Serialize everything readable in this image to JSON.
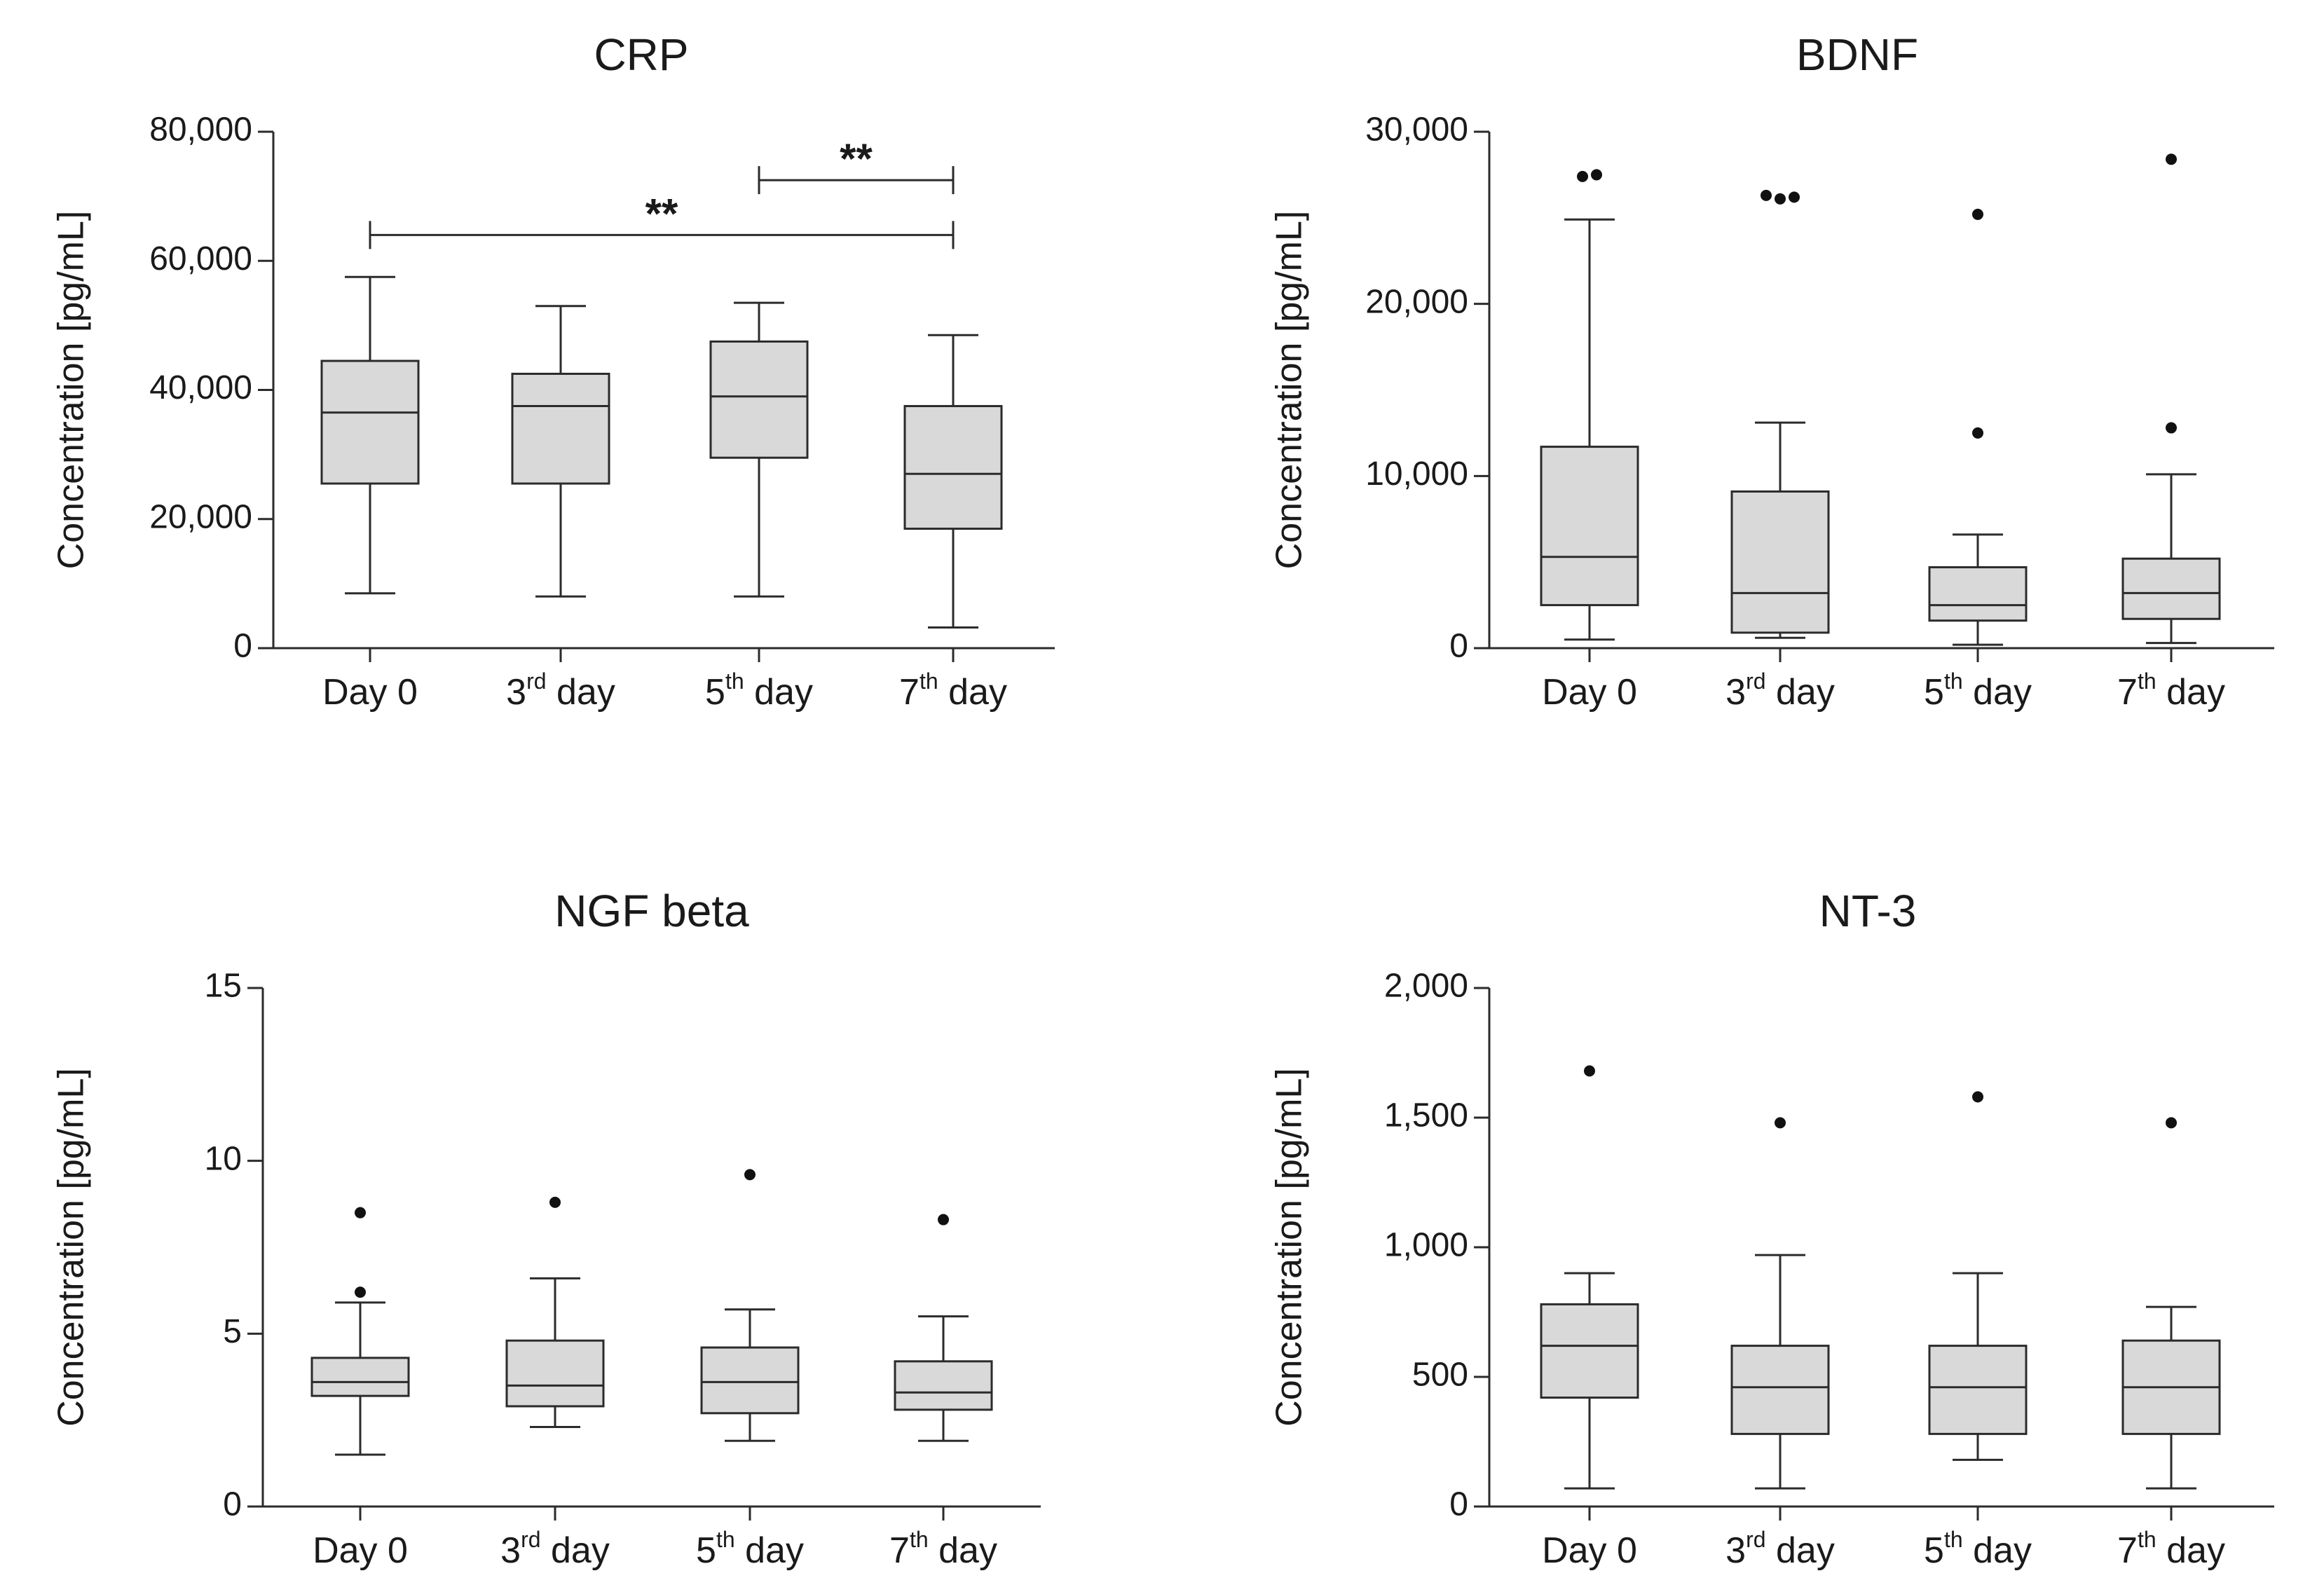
{
  "figure": {
    "colors": {
      "axis": "#2b2b2b",
      "box_fill": "#d9d9d9",
      "box_stroke": "#2b2b2b",
      "outlier": "#111111"
    }
  },
  "chart_data": [
    {
      "type": "box",
      "title": "CRP",
      "ylabel": "Concentration [pg/mL]",
      "ylim": [
        0,
        80000
      ],
      "yticks": [
        0,
        20000,
        40000,
        60000,
        80000
      ],
      "ytick_labels": [
        "0",
        "20,000",
        "40,000",
        "60,000",
        "80,000"
      ],
      "categories": [
        {
          "base": "Day 0",
          "sup": "",
          "suffix": ""
        },
        {
          "base": "3",
          "sup": "rd",
          "suffix": " day"
        },
        {
          "base": "5",
          "sup": "th",
          "suffix": " day"
        },
        {
          "base": "7",
          "sup": "th",
          "suffix": " day"
        }
      ],
      "boxes": [
        {
          "min": 8500,
          "q1": 25500,
          "median": 36500,
          "q3": 44500,
          "max": 57500,
          "outliers": []
        },
        {
          "min": 8000,
          "q1": 25500,
          "median": 37500,
          "q3": 42500,
          "max": 53000,
          "outliers": []
        },
        {
          "min": 8000,
          "q1": 29500,
          "median": 39000,
          "q3": 47500,
          "max": 53500,
          "outliers": []
        },
        {
          "min": 3200,
          "q1": 18500,
          "median": 27000,
          "q3": 37500,
          "max": 48500,
          "outliers": []
        }
      ],
      "significance": [
        {
          "from": 2,
          "to": 3,
          "y": 72500,
          "label": "**"
        },
        {
          "from": 0,
          "to": 3,
          "y": 64000,
          "label": "**"
        }
      ]
    },
    {
      "type": "box",
      "title": "BDNF",
      "ylabel": "Concentration [pg/mL]",
      "ylim": [
        0,
        30000
      ],
      "yticks": [
        0,
        10000,
        20000,
        30000
      ],
      "ytick_labels": [
        "0",
        "10,000",
        "20,000",
        "30,000"
      ],
      "categories": [
        {
          "base": "Day 0",
          "sup": "",
          "suffix": ""
        },
        {
          "base": "3",
          "sup": "rd",
          "suffix": " day"
        },
        {
          "base": "5",
          "sup": "th",
          "suffix": " day"
        },
        {
          "base": "7",
          "sup": "th",
          "suffix": " day"
        }
      ],
      "boxes": [
        {
          "min": 500,
          "q1": 2500,
          "median": 5300,
          "q3": 11700,
          "max": 24900,
          "outliers": [
            27400,
            27500
          ]
        },
        {
          "min": 600,
          "q1": 900,
          "median": 3200,
          "q3": 9100,
          "max": 13100,
          "outliers": [
            26300,
            26100,
            26200
          ]
        },
        {
          "min": 200,
          "q1": 1600,
          "median": 2500,
          "q3": 4700,
          "max": 6600,
          "outliers": [
            12500,
            25200
          ]
        },
        {
          "min": 300,
          "q1": 1700,
          "median": 3200,
          "q3": 5200,
          "max": 10100,
          "outliers": [
            12800,
            28400
          ]
        }
      ],
      "significance": []
    },
    {
      "type": "box",
      "title": "NGF beta",
      "ylabel": "Concentration [pg/mL]",
      "ylim": [
        0,
        15
      ],
      "yticks": [
        0,
        5,
        10,
        15
      ],
      "ytick_labels": [
        "0",
        "5",
        "10",
        "15"
      ],
      "categories": [
        {
          "base": "Day 0",
          "sup": "",
          "suffix": ""
        },
        {
          "base": "3",
          "sup": "rd",
          "suffix": " day"
        },
        {
          "base": "5",
          "sup": "th",
          "suffix": " day"
        },
        {
          "base": "7",
          "sup": "th",
          "suffix": " day"
        }
      ],
      "boxes": [
        {
          "min": 1.5,
          "q1": 3.2,
          "median": 3.6,
          "q3": 4.3,
          "max": 5.9,
          "outliers": [
            6.2,
            8.5
          ]
        },
        {
          "min": 2.3,
          "q1": 2.9,
          "median": 3.5,
          "q3": 4.8,
          "max": 6.6,
          "outliers": [
            8.8
          ]
        },
        {
          "min": 1.9,
          "q1": 2.7,
          "median": 3.6,
          "q3": 4.6,
          "max": 5.7,
          "outliers": [
            9.6
          ]
        },
        {
          "min": 1.9,
          "q1": 2.8,
          "median": 3.3,
          "q3": 4.2,
          "max": 5.5,
          "outliers": [
            8.3
          ]
        }
      ],
      "significance": []
    },
    {
      "type": "box",
      "title": "NT-3",
      "ylabel": "Concentration [pg/mL]",
      "ylim": [
        0,
        2000
      ],
      "yticks": [
        0,
        500,
        1000,
        1500,
        2000
      ],
      "ytick_labels": [
        "0",
        "500",
        "1,000",
        "1,500",
        "2,000"
      ],
      "categories": [
        {
          "base": "Day 0",
          "sup": "",
          "suffix": ""
        },
        {
          "base": "3",
          "sup": "rd",
          "suffix": " day"
        },
        {
          "base": "5",
          "sup": "th",
          "suffix": " day"
        },
        {
          "base": "7",
          "sup": "th",
          "suffix": " day"
        }
      ],
      "boxes": [
        {
          "min": 70,
          "q1": 420,
          "median": 620,
          "q3": 780,
          "max": 900,
          "outliers": [
            1680
          ]
        },
        {
          "min": 70,
          "q1": 280,
          "median": 460,
          "q3": 620,
          "max": 970,
          "outliers": [
            1480
          ]
        },
        {
          "min": 180,
          "q1": 280,
          "median": 460,
          "q3": 620,
          "max": 900,
          "outliers": [
            1580
          ]
        },
        {
          "min": 70,
          "q1": 280,
          "median": 460,
          "q3": 640,
          "max": 770,
          "outliers": [
            1480
          ]
        }
      ],
      "significance": []
    }
  ]
}
